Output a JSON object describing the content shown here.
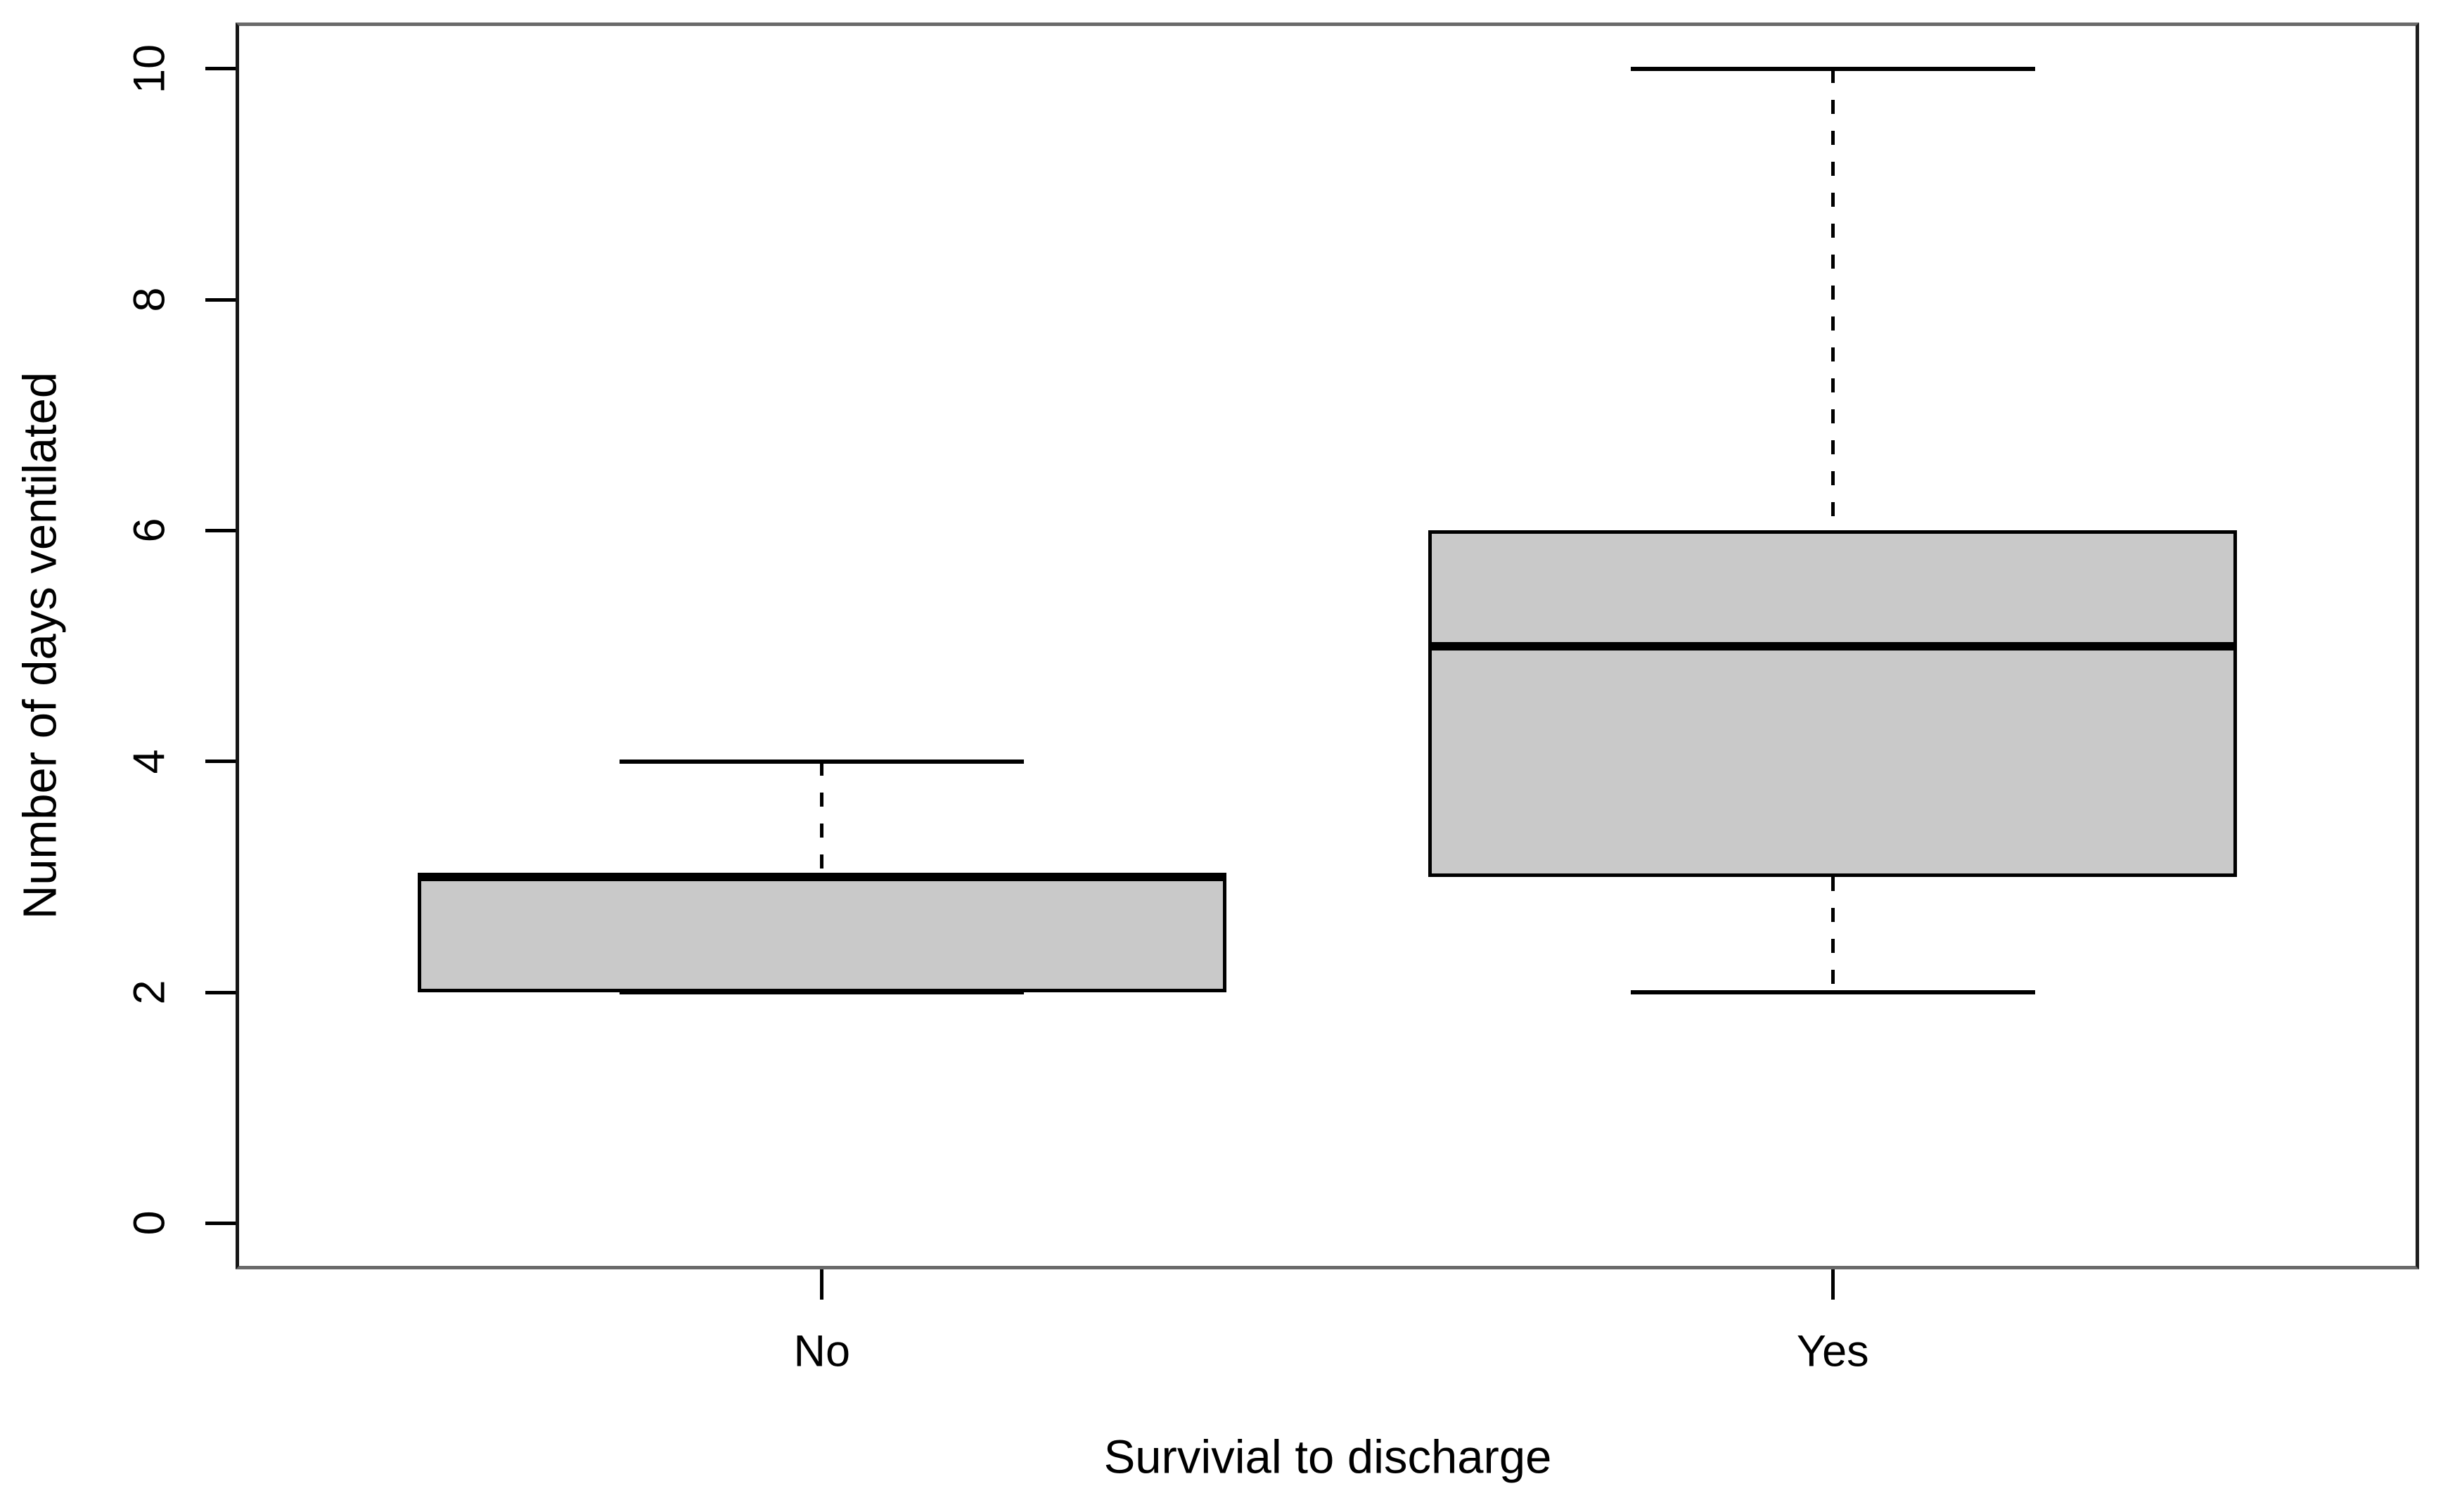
{
  "figure": {
    "background": "#ffffff"
  },
  "chart_data": {
    "type": "boxplot",
    "title": "",
    "xlabel": "Survivial to discharge",
    "ylabel": "Number of days ventilated",
    "categories": [
      "No",
      "Yes"
    ],
    "series": [
      {
        "name": "No",
        "min": 2,
        "q1": 2,
        "median": 3,
        "q3": 3,
        "max": 4
      },
      {
        "name": "Yes",
        "min": 2,
        "q1": 3,
        "median": 5,
        "q3": 6,
        "max": 10
      }
    ],
    "yticks": [
      0,
      2,
      4,
      6,
      8,
      10
    ],
    "ylim": [
      -0.4,
      10.4
    ],
    "xlim": [
      0.42,
      2.58
    ],
    "grid": false,
    "legend": "none",
    "box_fill": "#c9c9c9",
    "line_color": "#000000",
    "whisker_style": "dashed",
    "box_width_frac": 0.8,
    "staple_width_frac": 0.4
  }
}
